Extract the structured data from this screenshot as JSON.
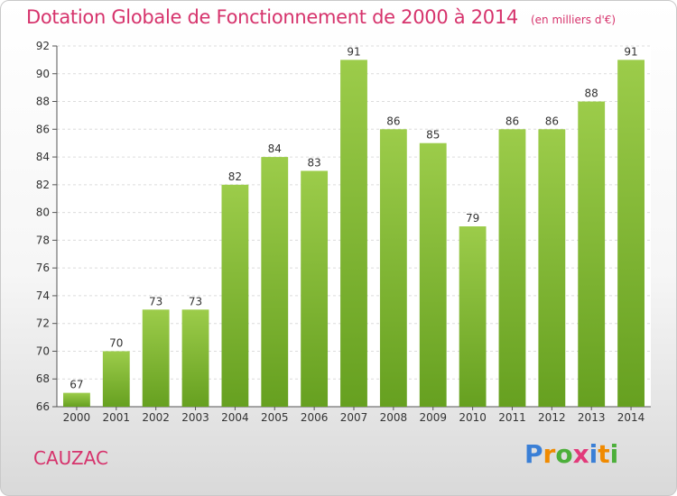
{
  "chart_data": {
    "type": "bar",
    "title": "Dotation Globale de Fonctionnement de 2000 à 2014",
    "unit_label": "(en milliers d'€)",
    "categories": [
      "2000",
      "2001",
      "2002",
      "2003",
      "2004",
      "2005",
      "2006",
      "2007",
      "2008",
      "2009",
      "2010",
      "2011",
      "2012",
      "2013",
      "2014"
    ],
    "values": [
      67,
      70,
      73,
      73,
      82,
      84,
      83,
      91,
      86,
      85,
      79,
      86,
      86,
      88,
      91
    ],
    "ylim": [
      66,
      92
    ],
    "yticks": [
      "66",
      "68",
      "70",
      "72",
      "74",
      "76",
      "78",
      "80",
      "82",
      "84",
      "86",
      "88",
      "90",
      "92"
    ],
    "grid": true,
    "bar_color_top": "#9ccc4a",
    "bar_color_bottom": "#66a020"
  },
  "commune": "CAUZAC",
  "logo": {
    "letters": [
      "P",
      "r",
      "o",
      "x",
      "i",
      "t",
      "i"
    ],
    "colors": [
      "#3a7fd6",
      "#f08a00",
      "#4caf3a",
      "#e23a7a",
      "#3a7fd6",
      "#f08a00",
      "#4caf3a"
    ]
  }
}
